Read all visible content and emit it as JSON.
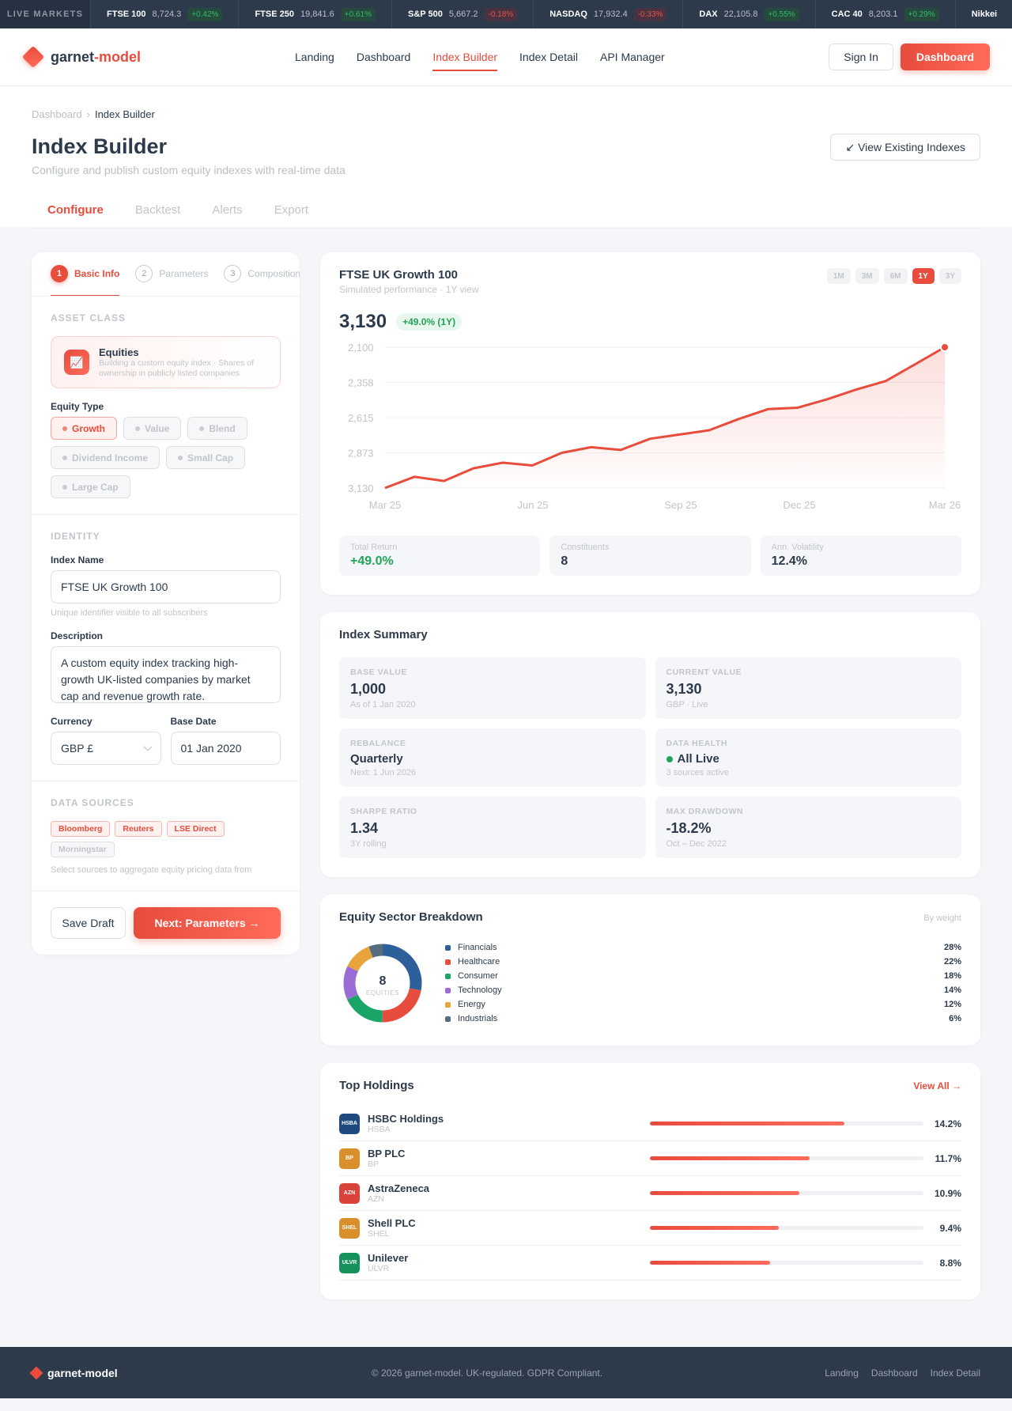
{
  "ticker": {
    "label": "LIVE MARKETS",
    "items": [
      {
        "name": "FTSE 100",
        "price": "8,724.3",
        "change": "+0.42%",
        "dir": "up"
      },
      {
        "name": "FTSE 250",
        "price": "19,841.6",
        "change": "+0.61%",
        "dir": "up"
      },
      {
        "name": "S&P 500",
        "price": "5,667.2",
        "change": "-0.18%",
        "dir": "down"
      },
      {
        "name": "NASDAQ",
        "price": "17,932.4",
        "change": "-0.33%",
        "dir": "down"
      },
      {
        "name": "DAX",
        "price": "22,105.8",
        "change": "+0.55%",
        "dir": "up"
      },
      {
        "name": "CAC 40",
        "price": "8,203.1",
        "change": "+0.29%",
        "dir": "up"
      },
      {
        "name": "Nikkei",
        "price": "",
        "change": "",
        "dir": "up"
      }
    ]
  },
  "brand": {
    "part1": "garnet",
    "part2": "-model",
    "full": "garnet-model",
    "accent": "#e74c3c"
  },
  "nav": {
    "links": [
      "Landing",
      "Dashboard",
      "Index Builder",
      "Index Detail",
      "API Manager"
    ],
    "active": "Index Builder",
    "sign_in": "Sign In",
    "cta": "Dashboard"
  },
  "header": {
    "breadcrumb": [
      "Dashboard",
      "Index Builder"
    ],
    "breadcrumb_sep": "›",
    "title": "Index Builder",
    "subtitle": "Configure and publish custom equity indexes with real-time data",
    "view_button": "↙ View Existing Indexes",
    "tabs": [
      "Configure",
      "Backtest",
      "Alerts",
      "Export"
    ],
    "active_tab": "Configure"
  },
  "builder": {
    "steps": [
      {
        "num": "1",
        "label": "Basic Info",
        "active": true
      },
      {
        "num": "2",
        "label": "Parameters",
        "active": false
      },
      {
        "num": "3",
        "label": "Composition",
        "active": false
      }
    ],
    "asset_class": {
      "section": "ASSET CLASS",
      "icon_text": "\\u{1F4C8}",
      "name": "Equities",
      "desc": "Building a custom equity index · Shares of ownership in publicly listed companies"
    },
    "equity_type": {
      "label": "Equity Type",
      "options": [
        "Growth",
        "Value",
        "Blend",
        "Dividend Income",
        "Small Cap",
        "Large Cap"
      ],
      "selected": "Growth"
    },
    "identity": {
      "section": "IDENTITY",
      "name_label": "Index Name",
      "name_value": "FTSE UK Growth 100",
      "name_hint": "Unique identifier visible to all subscribers",
      "desc_label": "Description",
      "desc_value": "A custom equity index tracking high-growth UK-listed companies by market cap and revenue growth rate.",
      "currency_label": "Currency",
      "currency_value": "GBP £",
      "base_date_label": "Base Date",
      "base_date_value": "01 Jan 2020"
    },
    "data_sources": {
      "section": "DATA SOURCES",
      "sources": [
        {
          "name": "Bloomberg",
          "on": true
        },
        {
          "name": "Reuters",
          "on": true
        },
        {
          "name": "LSE Direct",
          "on": true
        },
        {
          "name": "Morningstar",
          "on": false
        }
      ],
      "hint": "Select sources to aggregate equity pricing data from"
    },
    "save_label": "Save Draft",
    "next_label": "Next: Parameters →"
  },
  "performance": {
    "title": "FTSE UK Growth 100",
    "subtitle": "Simulated performance · 1Y view",
    "ranges": [
      "1M",
      "3M",
      "6M",
      "1Y",
      "3Y"
    ],
    "active_range": "1Y",
    "value": "3,130",
    "change": "+49.0% (1Y)",
    "stats": [
      {
        "label": "Total Return",
        "value": "+49.0%",
        "positive": true
      },
      {
        "label": "Constituents",
        "value": "8",
        "positive": false
      },
      {
        "label": "Ann. Volatility",
        "value": "12.4%",
        "positive": false
      }
    ]
  },
  "chart_data": {
    "type": "area",
    "title": "FTSE UK Growth 100",
    "subtitle": "Simulated performance · 1Y view",
    "x_ticks": [
      "Mar 25",
      "Jun 25",
      "Sep 25",
      "Dec 25",
      "Mar 26"
    ],
    "y_ticks": [
      "2,100",
      "2,358",
      "2,615",
      "2,873",
      "3,130"
    ],
    "y_axis_note": "tick labels increase top-to-bottom as rendered",
    "grid": true,
    "line_color": "#e74c3c",
    "points_norm": [
      0.0,
      0.08,
      0.05,
      0.14,
      0.18,
      0.16,
      0.25,
      0.29,
      0.27,
      0.35,
      0.38,
      0.41,
      0.49,
      0.56,
      0.57,
      0.63,
      0.7,
      0.76,
      0.88,
      1.0
    ],
    "values": [
      2100,
      2183,
      2152,
      2245,
      2286,
      2265,
      2358,
      2399,
      2378,
      2460,
      2491,
      2522,
      2604,
      2676,
      2687,
      2749,
      2821,
      2883,
      3007,
      3130
    ]
  },
  "summary": {
    "title": "Index Summary",
    "items": [
      {
        "label": "BASE VALUE",
        "value": "1,000",
        "sub": "As of 1 Jan 2020"
      },
      {
        "label": "CURRENT VALUE",
        "value": "3,130",
        "sub": "GBP · Live"
      },
      {
        "label": "REBALANCE",
        "value": "Quarterly",
        "sub": "Next: 1 Jun 2026"
      },
      {
        "label": "DATA HEALTH",
        "value": "All Live",
        "sub": "3 sources active"
      },
      {
        "label": "SHARPE RATIO",
        "value": "1.34",
        "sub": "3Y rolling"
      },
      {
        "label": "MAX DRAWDOWN",
        "value": "-18.2%",
        "sub": "Oct – Dec 2022"
      }
    ]
  },
  "sectors": {
    "title": "Equity Sector Breakdown",
    "note": "By weight",
    "center_value": "8",
    "center_label": "EQUITIES",
    "items": [
      {
        "name": "Financials",
        "pct": "28%",
        "value": 28,
        "color": "#2d5f9a"
      },
      {
        "name": "Healthcare",
        "pct": "22%",
        "value": 22,
        "color": "#e74c3c"
      },
      {
        "name": "Consumer",
        "pct": "18%",
        "value": 18,
        "color": "#1aa566"
      },
      {
        "name": "Technology",
        "pct": "14%",
        "value": 14,
        "color": "#9b6bd6"
      },
      {
        "name": "Energy",
        "pct": "12%",
        "value": 12,
        "color": "#e8a33d"
      },
      {
        "name": "Industrials",
        "pct": "6%",
        "value": 6,
        "color": "#566d7e"
      }
    ]
  },
  "holdings": {
    "title": "Top Holdings",
    "view_all": "View All →",
    "items": [
      {
        "name": "HSBC Holdings",
        "ticker": "HSBA",
        "pct": "14.2%",
        "bar": 71,
        "color": "#1f4a80"
      },
      {
        "name": "BP PLC",
        "ticker": "BP",
        "pct": "11.7%",
        "bar": 58.5,
        "color": "#d9902a"
      },
      {
        "name": "AstraZeneca",
        "ticker": "AZN",
        "pct": "10.9%",
        "bar": 54.5,
        "color": "#d9433a"
      },
      {
        "name": "Shell PLC",
        "ticker": "SHEL",
        "pct": "9.4%",
        "bar": 47,
        "color": "#d9902a"
      },
      {
        "name": "Unilever",
        "ticker": "ULVR",
        "pct": "8.8%",
        "bar": 44,
        "color": "#15925a"
      }
    ]
  },
  "footer": {
    "brand": "garnet-model",
    "copyright": "© 2026 garnet-model. UK-regulated. GDPR Compliant.",
    "links": [
      "Landing",
      "Dashboard",
      "Index Detail"
    ]
  }
}
